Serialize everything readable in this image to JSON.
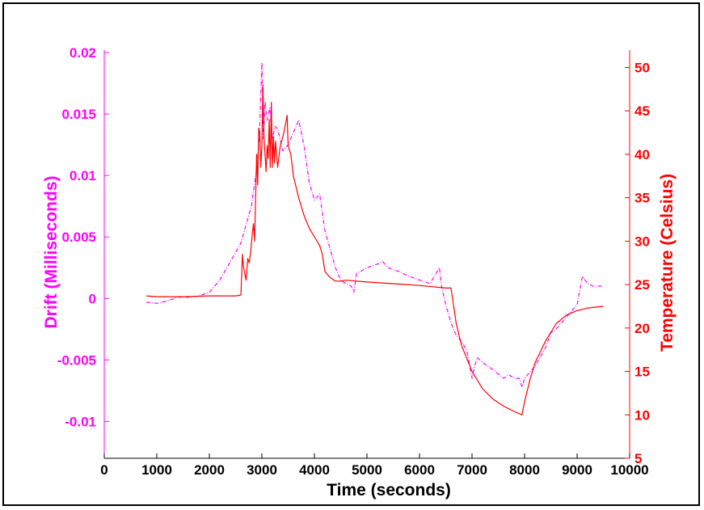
{
  "chart_data": {
    "type": "line",
    "xlabel": "Time (seconds)",
    "ylabel_left": "Drift (Milliseconds)",
    "ylabel_right": "Temperature (Celsius)",
    "xlim": [
      0,
      10000
    ],
    "ylim_left": [
      -0.013,
      0.0202
    ],
    "ylim_right": [
      5,
      52
    ],
    "x_ticks": [
      0,
      1000,
      2000,
      3000,
      4000,
      5000,
      6000,
      7000,
      8000,
      9000,
      10000
    ],
    "x_tick_labels": [
      "0",
      "1000",
      "2000",
      "3000",
      "4000",
      "5000",
      "6000",
      "7000",
      "8000",
      "9000",
      "10000"
    ],
    "y_left_ticks": [
      0.02,
      0.015,
      0.01,
      0.005,
      0,
      -0.005,
      -0.01
    ],
    "y_left_tick_labels": [
      "0.02",
      "0.015",
      "0.01",
      "0.005",
      "0",
      "-0.005",
      "-0.01"
    ],
    "y_right_ticks": [
      50,
      45,
      40,
      35,
      30,
      25,
      20,
      15,
      10,
      5
    ],
    "y_right_tick_labels": [
      "50",
      "45",
      "40",
      "35",
      "30",
      "25",
      "20",
      "15",
      "10",
      "5"
    ],
    "grid": false,
    "series": [
      {
        "axis": "left",
        "color": "#ff00ff",
        "style": "dashdot",
        "x": [
          800,
          1000,
          1200,
          1400,
          1600,
          1800,
          2000,
          2200,
          2400,
          2600,
          2800,
          2900,
          2950,
          3000,
          3030,
          3060,
          3100,
          3150,
          3200,
          3250,
          3300,
          3400,
          3500,
          3600,
          3700,
          3800,
          3900,
          4000,
          4100,
          4150,
          4200,
          4300,
          4400,
          4500,
          4600,
          4700,
          4750,
          4800,
          5000,
          5200,
          5300,
          5400,
          5600,
          5800,
          6000,
          6200,
          6380,
          6420,
          6500,
          6600,
          6700,
          6800,
          6900,
          7000,
          7050,
          7100,
          7200,
          7400,
          7600,
          7700,
          7800,
          7900,
          7950,
          8000,
          8200,
          8400,
          8500,
          8600,
          8800,
          9000,
          9100,
          9200,
          9300,
          9500
        ],
        "y": [
          -0.0003,
          -0.0004,
          -0.0002,
          0.0001,
          0.0001,
          0.0002,
          0.0005,
          0.0015,
          0.003,
          0.0045,
          0.0075,
          0.0105,
          0.013,
          0.0192,
          0.013,
          0.016,
          0.0145,
          0.0155,
          0.013,
          0.014,
          0.0138,
          0.012,
          0.0125,
          0.0135,
          0.0145,
          0.0125,
          0.0095,
          0.008,
          0.0085,
          0.007,
          0.0055,
          0.004,
          0.0025,
          0.0015,
          0.0012,
          0.001,
          0.0005,
          0.002,
          0.0025,
          0.0028,
          0.003,
          0.0025,
          0.0022,
          0.0018,
          0.0015,
          0.0012,
          0.0025,
          0.001,
          -0.0005,
          -0.002,
          -0.003,
          -0.0035,
          -0.0042,
          -0.0065,
          -0.0055,
          -0.0048,
          -0.0052,
          -0.0058,
          -0.0065,
          -0.0062,
          -0.0065,
          -0.0065,
          -0.0072,
          -0.0065,
          -0.0055,
          -0.004,
          -0.0028,
          -0.0025,
          -0.0015,
          -0.0005,
          0.0018,
          0.0012,
          0.001,
          0.001
        ]
      },
      {
        "axis": "right",
        "color": "#ff0000",
        "style": "solid",
        "x": [
          800,
          1000,
          1500,
          2000,
          2500,
          2600,
          2630,
          2650,
          2700,
          2730,
          2760,
          2790,
          2820,
          2840,
          2860,
          2880,
          2900,
          2920,
          2940,
          2960,
          2980,
          3000,
          3020,
          3040,
          3060,
          3080,
          3100,
          3120,
          3140,
          3160,
          3180,
          3200,
          3220,
          3240,
          3260,
          3300,
          3350,
          3400,
          3450,
          3480,
          3500,
          3550,
          3600,
          3700,
          3800,
          3900,
          4000,
          4100,
          4150,
          4200,
          4300,
          4400,
          4500,
          4600,
          5000,
          5500,
          6000,
          6500,
          6600,
          6700,
          6800,
          7000,
          7200,
          7400,
          7600,
          7800,
          7950,
          8000,
          8100,
          8200,
          8400,
          8600,
          8800,
          9000,
          9200,
          9500
        ],
        "y": [
          23.7,
          23.6,
          23.6,
          23.7,
          23.7,
          23.8,
          28.5,
          27,
          25.5,
          28,
          27.5,
          29,
          31,
          32,
          30,
          34.5,
          40,
          36.5,
          43,
          42.5,
          38.5,
          41,
          48,
          42,
          40,
          38,
          41,
          39.5,
          44,
          38.5,
          46,
          38.5,
          42,
          39,
          41.5,
          38.5,
          41,
          42,
          43.5,
          44.5,
          41,
          40,
          37.5,
          35,
          33,
          31.5,
          30.5,
          29.5,
          28.5,
          26.5,
          25.8,
          25.4,
          25.4,
          25.5,
          25.3,
          25.1,
          24.9,
          24.6,
          24.6,
          20.5,
          18,
          15,
          13,
          11.8,
          11,
          10.4,
          10.0,
          11.5,
          14,
          16,
          18.5,
          20.5,
          21.5,
          22,
          22.3,
          22.5
        ]
      }
    ]
  }
}
